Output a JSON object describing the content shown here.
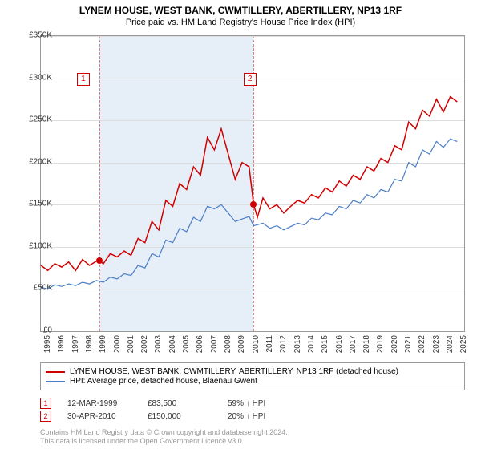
{
  "title": "LYNEM HOUSE, WEST BANK, CWMTILLERY, ABERTILLERY, NP13 1RF",
  "subtitle": "Price paid vs. HM Land Registry's House Price Index (HPI)",
  "chart": {
    "type": "line",
    "background_color": "#ffffff",
    "grid_color": "#dddddd",
    "band_color": "#e6eef7",
    "band_edge_color": "#e08080",
    "x_start": 1995.0,
    "x_end": 2025.5,
    "ylim": [
      0,
      350000
    ],
    "ytick_step": 50000,
    "yticks": [
      "£0",
      "£50K",
      "£100K",
      "£150K",
      "£200K",
      "£250K",
      "£300K",
      "£350K"
    ],
    "xticks": [
      1995,
      1996,
      1997,
      1998,
      1999,
      2000,
      2001,
      2002,
      2003,
      2004,
      2005,
      2006,
      2007,
      2008,
      2009,
      2010,
      2011,
      2012,
      2013,
      2014,
      2015,
      2016,
      2017,
      2018,
      2019,
      2020,
      2021,
      2022,
      2023,
      2024,
      2025
    ],
    "band_x": [
      1999.2,
      2010.33
    ],
    "series": [
      {
        "name": "price_paid",
        "label": "LYNEM HOUSE, WEST BANK, CWMTILLERY, ABERTILLERY, NP13 1RF (detached house)",
        "color": "#d00000",
        "line_width": 1.5,
        "points": [
          [
            1995.0,
            78000
          ],
          [
            1995.5,
            72000
          ],
          [
            1996.0,
            80000
          ],
          [
            1996.5,
            76000
          ],
          [
            1997.0,
            82000
          ],
          [
            1997.5,
            72000
          ],
          [
            1998.0,
            85000
          ],
          [
            1998.5,
            78000
          ],
          [
            1999.0,
            83000
          ],
          [
            1999.2,
            83500
          ],
          [
            1999.5,
            80000
          ],
          [
            2000.0,
            92000
          ],
          [
            2000.5,
            88000
          ],
          [
            2001.0,
            95000
          ],
          [
            2001.5,
            90000
          ],
          [
            2002.0,
            110000
          ],
          [
            2002.5,
            105000
          ],
          [
            2003.0,
            130000
          ],
          [
            2003.5,
            120000
          ],
          [
            2004.0,
            155000
          ],
          [
            2004.5,
            148000
          ],
          [
            2005.0,
            175000
          ],
          [
            2005.5,
            168000
          ],
          [
            2006.0,
            195000
          ],
          [
            2006.5,
            185000
          ],
          [
            2007.0,
            230000
          ],
          [
            2007.5,
            215000
          ],
          [
            2008.0,
            240000
          ],
          [
            2008.5,
            210000
          ],
          [
            2009.0,
            180000
          ],
          [
            2009.5,
            200000
          ],
          [
            2010.0,
            195000
          ],
          [
            2010.33,
            150000
          ],
          [
            2010.6,
            135000
          ],
          [
            2011.0,
            158000
          ],
          [
            2011.5,
            145000
          ],
          [
            2012.0,
            150000
          ],
          [
            2012.5,
            140000
          ],
          [
            2013.0,
            148000
          ],
          [
            2013.5,
            155000
          ],
          [
            2014.0,
            152000
          ],
          [
            2014.5,
            162000
          ],
          [
            2015.0,
            158000
          ],
          [
            2015.5,
            170000
          ],
          [
            2016.0,
            165000
          ],
          [
            2016.5,
            178000
          ],
          [
            2017.0,
            172000
          ],
          [
            2017.5,
            185000
          ],
          [
            2018.0,
            180000
          ],
          [
            2018.5,
            195000
          ],
          [
            2019.0,
            190000
          ],
          [
            2019.5,
            205000
          ],
          [
            2020.0,
            200000
          ],
          [
            2020.5,
            220000
          ],
          [
            2021.0,
            215000
          ],
          [
            2021.5,
            248000
          ],
          [
            2022.0,
            240000
          ],
          [
            2022.5,
            262000
          ],
          [
            2023.0,
            255000
          ],
          [
            2023.5,
            275000
          ],
          [
            2024.0,
            260000
          ],
          [
            2024.5,
            278000
          ],
          [
            2025.0,
            272000
          ]
        ]
      },
      {
        "name": "hpi",
        "label": "HPI: Average price, detached house, Blaenau Gwent",
        "color": "#4a7ec8",
        "line_width": 1.2,
        "points": [
          [
            1995.0,
            52000
          ],
          [
            1995.5,
            50000
          ],
          [
            1996.0,
            55000
          ],
          [
            1996.5,
            53000
          ],
          [
            1997.0,
            56000
          ],
          [
            1997.5,
            54000
          ],
          [
            1998.0,
            58000
          ],
          [
            1998.5,
            56000
          ],
          [
            1999.0,
            60000
          ],
          [
            1999.5,
            58000
          ],
          [
            2000.0,
            64000
          ],
          [
            2000.5,
            62000
          ],
          [
            2001.0,
            68000
          ],
          [
            2001.5,
            66000
          ],
          [
            2002.0,
            78000
          ],
          [
            2002.5,
            75000
          ],
          [
            2003.0,
            92000
          ],
          [
            2003.5,
            88000
          ],
          [
            2004.0,
            108000
          ],
          [
            2004.5,
            105000
          ],
          [
            2005.0,
            122000
          ],
          [
            2005.5,
            118000
          ],
          [
            2006.0,
            135000
          ],
          [
            2006.5,
            130000
          ],
          [
            2007.0,
            148000
          ],
          [
            2007.5,
            145000
          ],
          [
            2008.0,
            150000
          ],
          [
            2008.5,
            140000
          ],
          [
            2009.0,
            130000
          ],
          [
            2009.5,
            133000
          ],
          [
            2010.0,
            136000
          ],
          [
            2010.33,
            125000
          ],
          [
            2011.0,
            128000
          ],
          [
            2011.5,
            122000
          ],
          [
            2012.0,
            125000
          ],
          [
            2012.5,
            120000
          ],
          [
            2013.0,
            124000
          ],
          [
            2013.5,
            128000
          ],
          [
            2014.0,
            126000
          ],
          [
            2014.5,
            134000
          ],
          [
            2015.0,
            132000
          ],
          [
            2015.5,
            140000
          ],
          [
            2016.0,
            138000
          ],
          [
            2016.5,
            148000
          ],
          [
            2017.0,
            145000
          ],
          [
            2017.5,
            155000
          ],
          [
            2018.0,
            152000
          ],
          [
            2018.5,
            162000
          ],
          [
            2019.0,
            158000
          ],
          [
            2019.5,
            168000
          ],
          [
            2020.0,
            165000
          ],
          [
            2020.5,
            180000
          ],
          [
            2021.0,
            178000
          ],
          [
            2021.5,
            200000
          ],
          [
            2022.0,
            195000
          ],
          [
            2022.5,
            215000
          ],
          [
            2023.0,
            210000
          ],
          [
            2023.5,
            225000
          ],
          [
            2024.0,
            218000
          ],
          [
            2024.5,
            228000
          ],
          [
            2025.0,
            225000
          ]
        ]
      }
    ],
    "markers": [
      {
        "n": "1",
        "x": 1999.2,
        "y": 83500,
        "box_x": 1998.0,
        "box_y": 300000
      },
      {
        "n": "2",
        "x": 2010.33,
        "y": 150000,
        "box_x": 2010.0,
        "box_y": 300000
      }
    ]
  },
  "legend": {
    "rows": [
      {
        "color": "#d00000",
        "label": "LYNEM HOUSE, WEST BANK, CWMTILLERY, ABERTILLERY, NP13 1RF (detached house)"
      },
      {
        "color": "#4a7ec8",
        "label": "HPI: Average price, detached house, Blaenau Gwent"
      }
    ]
  },
  "sales": [
    {
      "n": "1",
      "date": "12-MAR-1999",
      "price": "£83,500",
      "vs_hpi": "59% ↑ HPI"
    },
    {
      "n": "2",
      "date": "30-APR-2010",
      "price": "£150,000",
      "vs_hpi": "20% ↑ HPI"
    }
  ],
  "footnote_line1": "Contains HM Land Registry data © Crown copyright and database right 2024.",
  "footnote_line2": "This data is licensed under the Open Government Licence v3.0."
}
